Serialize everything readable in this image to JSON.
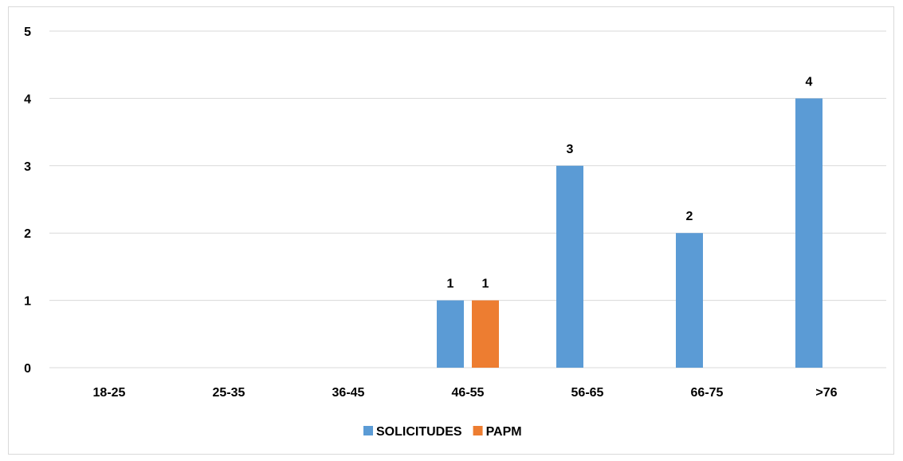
{
  "chart_data": {
    "type": "bar",
    "categories": [
      "18-25",
      "25-35",
      "36-45",
      "46-55",
      "56-65",
      "66-75",
      ">76"
    ],
    "series": [
      {
        "name": "SOLICITUDES",
        "color": "#5b9bd5",
        "values": [
          0,
          0,
          0,
          1,
          3,
          2,
          4
        ],
        "labels": [
          "",
          "",
          "",
          "1",
          "3",
          "2",
          "4"
        ]
      },
      {
        "name": "PAPM",
        "color": "#ed7d31",
        "values": [
          0,
          0,
          0,
          1,
          0,
          0,
          0
        ],
        "labels": [
          "",
          "",
          "",
          "1",
          "",
          "",
          ""
        ]
      }
    ],
    "ylim": [
      0,
      5
    ],
    "yticks": [
      0,
      1,
      2,
      3,
      4,
      5
    ],
    "grid": true,
    "legend": "bottom",
    "title": "",
    "xlabel": "",
    "ylabel": ""
  }
}
